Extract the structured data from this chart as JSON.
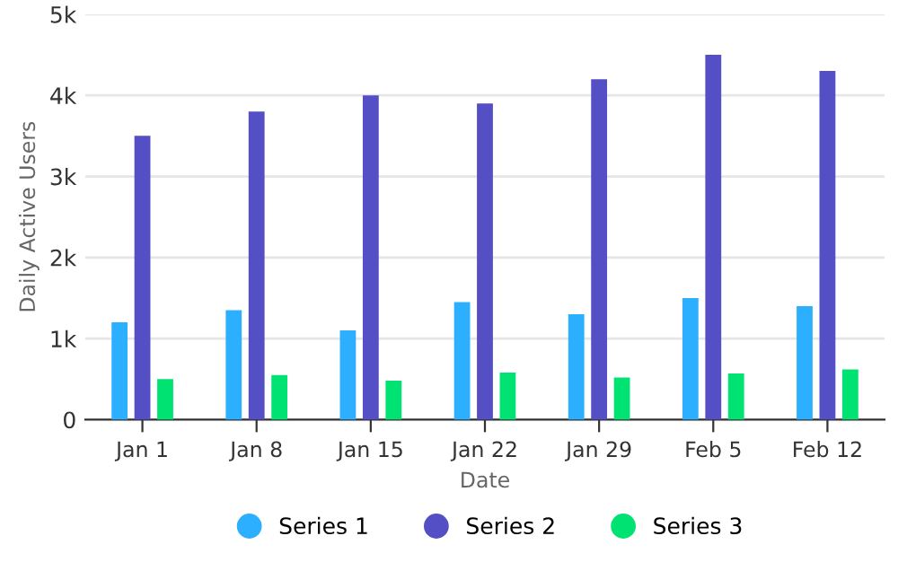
{
  "chart_data": {
    "type": "bar",
    "xlabel": "Date",
    "ylabel": "Daily Active Users",
    "categories": [
      "Jan 1",
      "Jan 8",
      "Jan 15",
      "Jan 22",
      "Jan 29",
      "Feb 5",
      "Feb 12"
    ],
    "series": [
      {
        "name": "Series 1",
        "color": "#2caffe",
        "values": [
          1200,
          1350,
          1100,
          1450,
          1300,
          1500,
          1400
        ]
      },
      {
        "name": "Series 2",
        "color": "#544fc5",
        "values": [
          3500,
          3800,
          4000,
          3900,
          4200,
          4500,
          4300
        ]
      },
      {
        "name": "Series 3",
        "color": "#00e272",
        "values": [
          500,
          550,
          480,
          580,
          520,
          570,
          620
        ]
      }
    ],
    "ylim": [
      0,
      5000
    ],
    "yticks": [
      {
        "value": 0,
        "label": "0"
      },
      {
        "value": 1000,
        "label": "1k"
      },
      {
        "value": 2000,
        "label": "2k"
      },
      {
        "value": 3000,
        "label": "3k"
      },
      {
        "value": 4000,
        "label": "4k"
      },
      {
        "value": 5000,
        "label": "5k"
      }
    ],
    "grid": "y",
    "legend": "bottom"
  }
}
